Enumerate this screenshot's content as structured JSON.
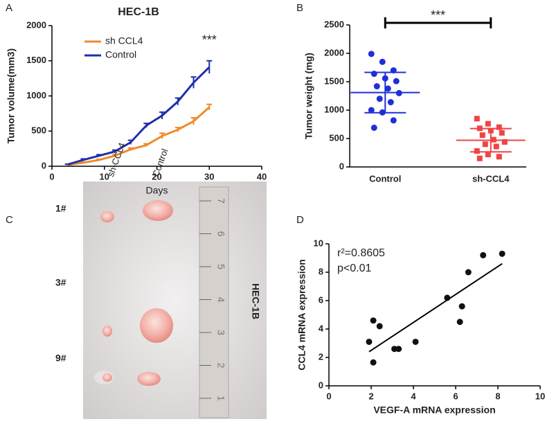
{
  "chart_data": [
    {
      "type": "line",
      "panel": "A",
      "title": "HEC-1B",
      "x_label": "Days",
      "y_label": "Tumor volume(mm3)",
      "annotation": "***",
      "x": [
        3,
        6,
        9,
        12,
        15,
        18,
        21,
        24,
        27,
        30
      ],
      "series": [
        {
          "name": "sh CCL4",
          "color": "#f08a2c",
          "values": [
            20,
            50,
            90,
            150,
            240,
            300,
            430,
            520,
            640,
            840
          ],
          "errors": [
            5,
            10,
            10,
            15,
            20,
            20,
            40,
            30,
            50,
            40
          ]
        },
        {
          "name": "Control",
          "color": "#1f2fa8",
          "values": [
            25,
            90,
            150,
            210,
            340,
            580,
            720,
            920,
            1190,
            1410
          ],
          "errors": [
            5,
            15,
            15,
            20,
            30,
            30,
            50,
            50,
            80,
            90
          ]
        }
      ],
      "xlim": [
        0,
        40
      ],
      "xticks": [
        0,
        10,
        20,
        30,
        40
      ],
      "ylim": [
        0,
        2000
      ],
      "yticks": [
        0,
        500,
        1000,
        1500,
        2000
      ],
      "legend": "upper left"
    },
    {
      "type": "strip",
      "panel": "B",
      "y_label": "Tumor weight (mg)",
      "annotation": "***",
      "categories": [
        "Control",
        "sh-CCL4"
      ],
      "series": [
        {
          "name": "Control",
          "color": "#1f2fd8",
          "values": [
            1990,
            1850,
            1700,
            1640,
            1560,
            1510,
            1420,
            1380,
            1300,
            1200,
            1140,
            1000,
            960,
            820,
            690
          ],
          "mean": 1310,
          "sd": 355
        },
        {
          "name": "sh-CCL4",
          "color": "#ee4444",
          "values": [
            850,
            760,
            700,
            680,
            640,
            600,
            560,
            480,
            440,
            400,
            360,
            280,
            220,
            180,
            150
          ],
          "mean": 470,
          "sd": 205
        }
      ],
      "ylim": [
        0,
        2500
      ],
      "yticks": [
        0,
        500,
        1000,
        1500,
        2000,
        2500
      ]
    },
    {
      "type": "scatter",
      "panel": "D",
      "x_label": "VEGF-A mRNA expression",
      "y_label": "CCL4 mRNA expression",
      "annotations": [
        "r²=0.8605",
        "p<0.01"
      ],
      "x": [
        1.9,
        2.1,
        2.1,
        2.4,
        3.1,
        3.3,
        4.1,
        5.6,
        6.2,
        6.3,
        6.6,
        7.3,
        8.2
      ],
      "values": [
        3.1,
        4.6,
        1.65,
        4.2,
        2.6,
        2.6,
        3.1,
        6.2,
        4.5,
        5.6,
        8.0,
        9.2,
        9.3
      ],
      "color": "#111111",
      "fit": {
        "slope": 0.984,
        "intercept": 0.53
      },
      "xlim": [
        0,
        10
      ],
      "xticks": [
        0,
        2,
        4,
        6,
        8,
        10
      ],
      "ylim": [
        0,
        10
      ],
      "yticks": [
        0,
        2,
        4,
        6,
        8,
        10
      ]
    }
  ],
  "photo": {
    "panel": "C",
    "columns": [
      "sh-CCL4",
      "Control"
    ],
    "rows": [
      "1#",
      "3#",
      "9#"
    ],
    "side_label": "HEC-1B",
    "ruler_marks": [
      1,
      2,
      3,
      4,
      5,
      6,
      7
    ]
  }
}
